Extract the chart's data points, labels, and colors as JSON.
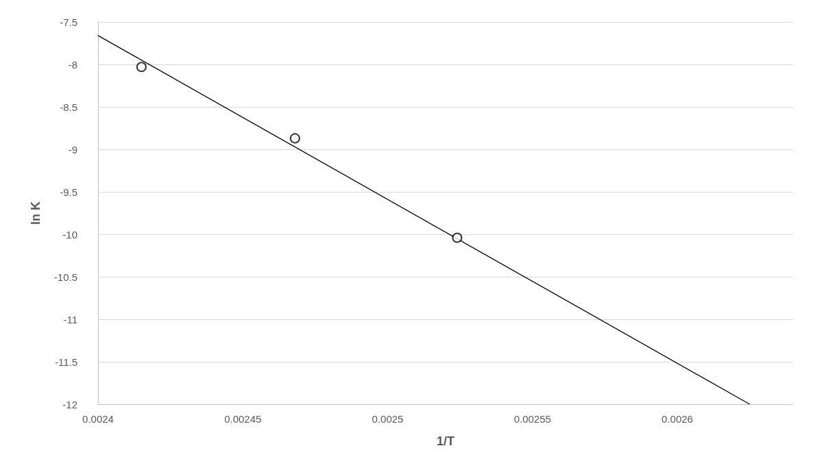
{
  "chart_data": {
    "type": "scatter",
    "xlabel": "1/T",
    "ylabel": "ln K",
    "xlim": [
      0.0024,
      0.00264
    ],
    "xticks": [
      0.0024,
      0.00245,
      0.0025,
      0.00255,
      0.0026
    ],
    "ylim": [
      -12,
      -7.5
    ],
    "yticks": [
      -12,
      -11.5,
      -11,
      -10.5,
      -10,
      -9.5,
      -9,
      -8.5,
      -8,
      -7.5
    ],
    "grid": "y",
    "series": [
      {
        "marker": "circle",
        "color": "#000000",
        "x": [
          0.002415,
          0.002468,
          0.002524
        ],
        "values": [
          -8.03,
          -8.87,
          -10.04
        ]
      },
      {
        "type": "line",
        "marker": "none",
        "line_style": "solid",
        "color": "#000000",
        "x": [
          0.0024,
          0.002625
        ],
        "values": [
          -7.66,
          -12
        ]
      }
    ]
  }
}
